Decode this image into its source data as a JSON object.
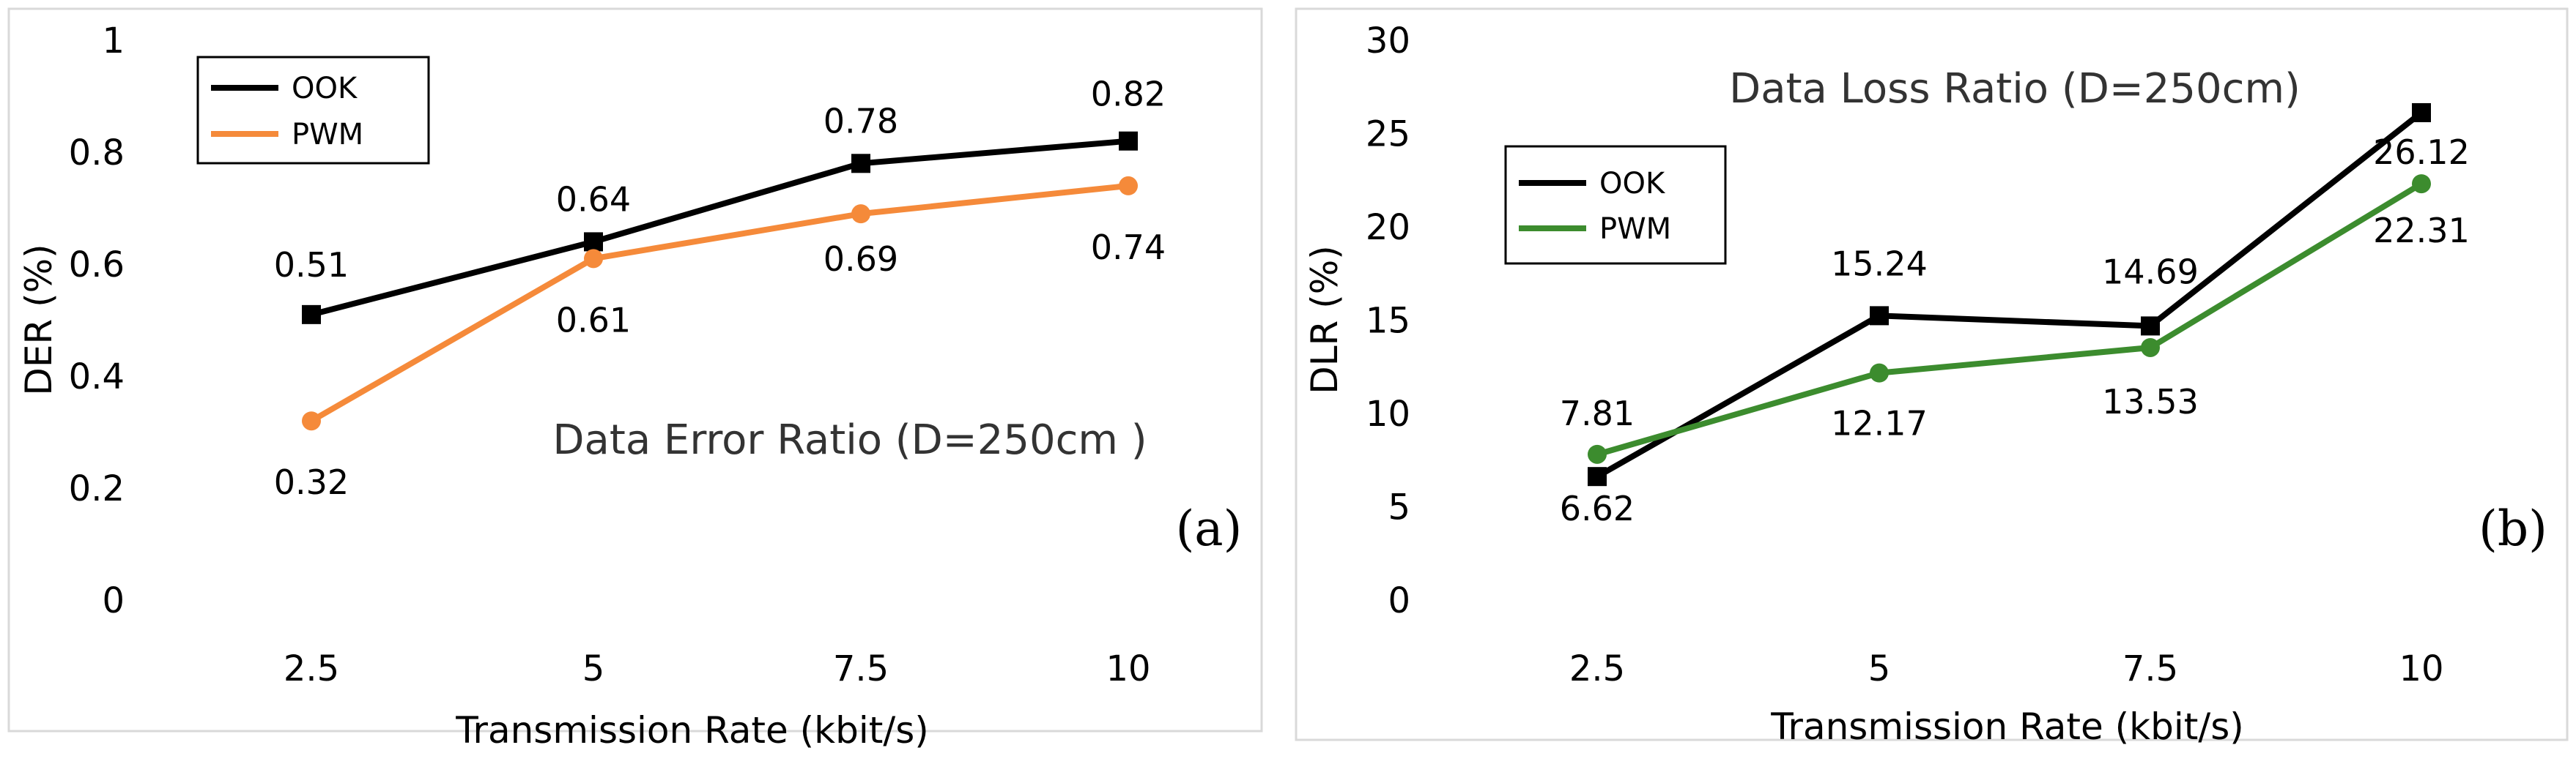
{
  "chart_data": [
    {
      "type": "line",
      "panel_label": "(a)",
      "title": "Data Error Ratio (D=250cm )",
      "xlabel": "Transmission Rate (kbit/s)",
      "ylabel": "DER (%)",
      "categories": [
        "2.5",
        "5",
        "7.5",
        "10"
      ],
      "ylim": [
        0,
        1
      ],
      "yticks": [
        "0",
        "0.2",
        "0.4",
        "0.6",
        "0.8",
        "1"
      ],
      "ytick_values": [
        0,
        0.2,
        0.4,
        0.6,
        0.8,
        1
      ],
      "grid": false,
      "legend": "top-left",
      "series": [
        {
          "name": "OOK",
          "color": "#000000",
          "marker": "square",
          "values": [
            0.51,
            0.64,
            0.78,
            0.82
          ],
          "labels": [
            "0.51",
            "0.64",
            "0.78",
            "0.82"
          ]
        },
        {
          "name": "PWM",
          "color": "#F58A3A",
          "marker": "circle",
          "values": [
            0.32,
            0.61,
            0.69,
            0.74
          ],
          "labels": [
            "0.32",
            "0.61",
            "0.69",
            "0.74"
          ]
        }
      ]
    },
    {
      "type": "line",
      "panel_label": "(b)",
      "title": "Data Loss Ratio (D=250cm)",
      "xlabel": "Transmission Rate (kbit/s)",
      "ylabel": "DLR (%)",
      "categories": [
        "2.5",
        "5",
        "7.5",
        "10"
      ],
      "ylim": [
        0,
        30
      ],
      "yticks": [
        "0",
        "5",
        "10",
        "15",
        "20",
        "25",
        "30"
      ],
      "ytick_values": [
        0,
        5,
        10,
        15,
        20,
        25,
        30
      ],
      "grid": false,
      "legend": "top-left",
      "series": [
        {
          "name": "OOK",
          "color": "#000000",
          "marker": "square",
          "values": [
            6.62,
            15.24,
            14.69,
            26.12
          ],
          "labels": [
            "6.62",
            "15.24",
            "14.69",
            "26.12"
          ]
        },
        {
          "name": "PWM",
          "color": "#3C8C2E",
          "marker": "circle",
          "values": [
            7.81,
            12.17,
            13.53,
            22.31
          ],
          "labels": [
            "7.81",
            "12.17",
            "13.53",
            "22.31"
          ]
        }
      ]
    }
  ]
}
